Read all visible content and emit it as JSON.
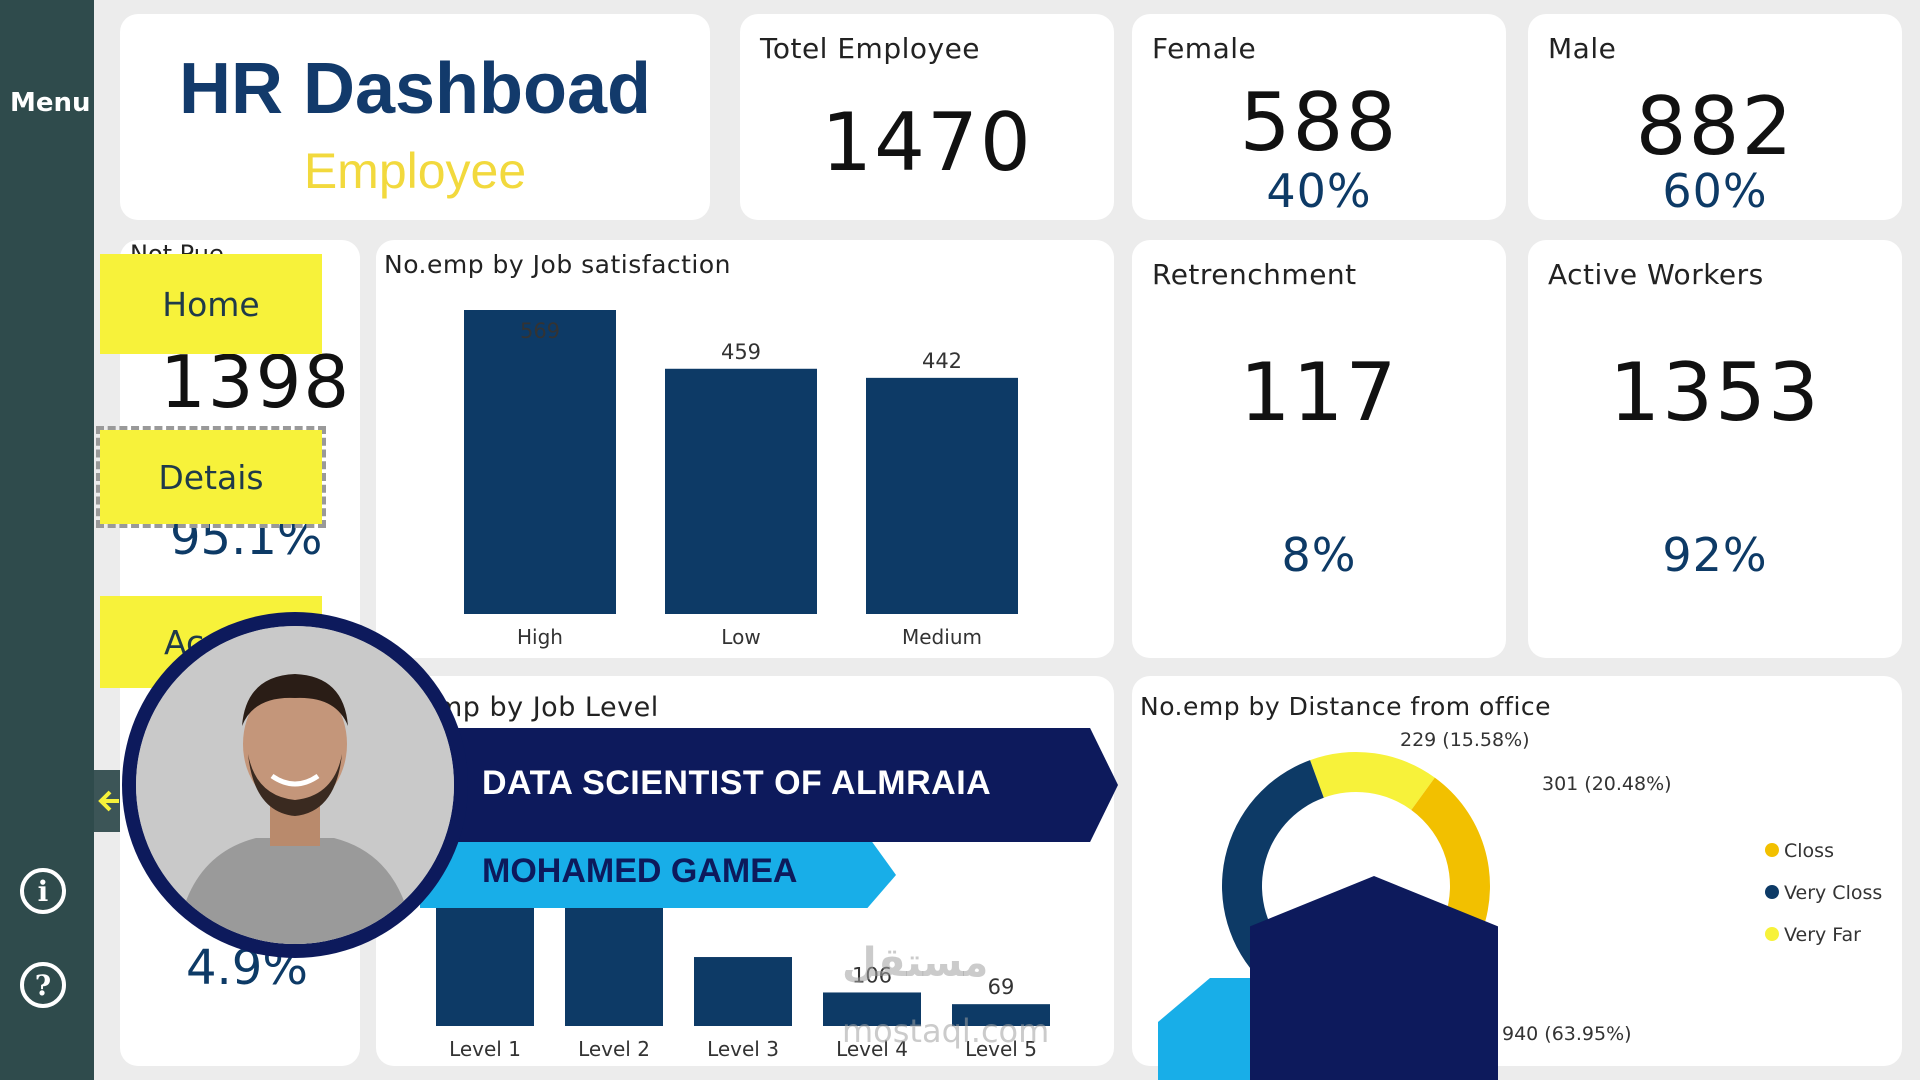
{
  "sidebar": {
    "menu_label": "Menu",
    "info_icon": "i",
    "help_icon": "?"
  },
  "header": {
    "title": "HR Dashboad",
    "subtitle": "Employee"
  },
  "kpis": {
    "total": {
      "label": "Totel Employee",
      "value": "1470"
    },
    "female": {
      "label": "Female",
      "value": "588",
      "pct": "40%"
    },
    "male": {
      "label": "Male",
      "value": "882",
      "pct": "60%"
    },
    "retrenchment": {
      "label": "Retrenchment",
      "value": "117",
      "pct": "8%"
    },
    "active": {
      "label": "Active Workers",
      "value": "1353",
      "pct": "92%"
    }
  },
  "left_panel": {
    "partial_label": "Not Pue",
    "value1": "1398",
    "value2": "95.1%",
    "value3": "4.9%"
  },
  "nav": {
    "home": "Home",
    "details": "Detais",
    "third_partial": "Ac"
  },
  "chart_data": [
    {
      "type": "bar",
      "title": "No.emp by Job satisfaction",
      "categories": [
        "High",
        "Low",
        "Medium"
      ],
      "values": [
        569,
        459,
        442
      ],
      "data_labels": [
        "569",
        "459",
        "442"
      ],
      "ylim": [
        0,
        569
      ],
      "color": "#0d3a66"
    },
    {
      "type": "bar",
      "title": "mp by Job Level",
      "categories": [
        "Level 1",
        "Level 2",
        "Level 3",
        "Level 4",
        "Level 5"
      ],
      "values": [
        543,
        534,
        218,
        106,
        69
      ],
      "data_labels": [
        "",
        "",
        "",
        "106",
        "69"
      ],
      "ylim": [
        0,
        569
      ],
      "color": "#0d3a66"
    },
    {
      "type": "pie",
      "title": "No.emp by Distance from office",
      "slices": [
        {
          "name": "Very Far",
          "value": 229,
          "label": "229 (15.58%)",
          "color": "#f7f23a"
        },
        {
          "name": "Closs",
          "value": 301,
          "label": "301 (20.48%)",
          "color": "#f2c000"
        },
        {
          "name": "Very Closs",
          "value": 940,
          "label": "940 (63.95%)",
          "color": "#0d3a66"
        }
      ],
      "legend": [
        "Closs",
        "Very Closs",
        "Very Far"
      ],
      "legend_position": "right"
    }
  ],
  "banner": {
    "role": "DATA SCIENTIST OF ALMRAIA",
    "name": "MOHAMED GAMEA"
  },
  "watermark": {
    "arabic": "مستقل",
    "latin": "mostaql.com"
  }
}
